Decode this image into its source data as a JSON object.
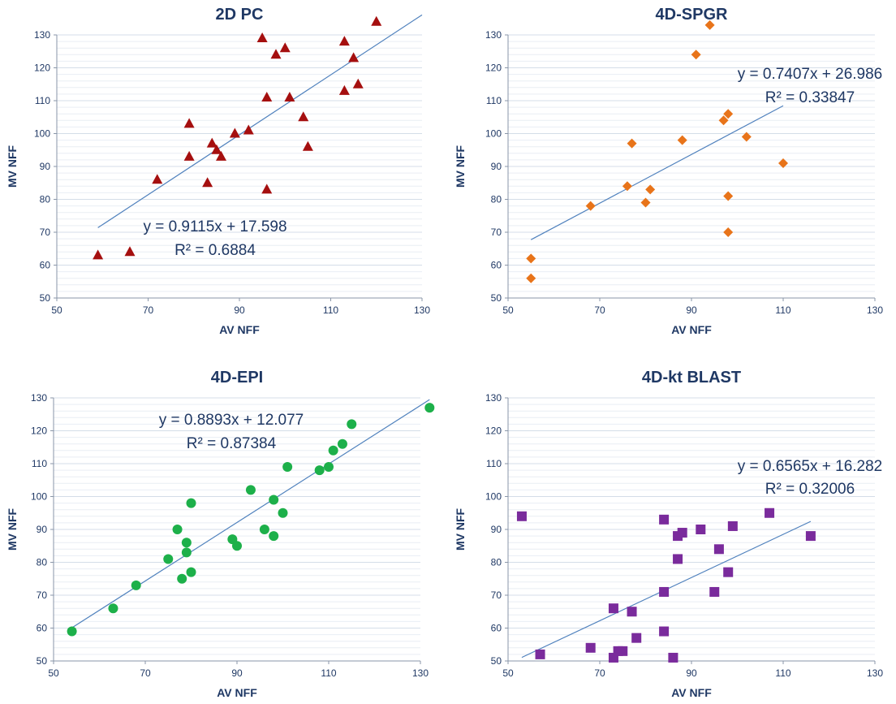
{
  "chart_data": [
    {
      "type": "scatter",
      "title": "2D PC",
      "xlabel": "AV NFF",
      "ylabel": "MV NFF",
      "xlim": [
        50,
        130
      ],
      "ylim": [
        50,
        130
      ],
      "xticks": [
        "50",
        "70",
        "90",
        "110",
        "130"
      ],
      "yticks": [
        "50",
        "60",
        "70",
        "80",
        "90",
        "100",
        "110",
        "120",
        "130"
      ],
      "marker": "triangle",
      "color": "#a50f0f",
      "grid": true,
      "equation": "y = 0.9115x + 17.598",
      "r2": "R² = 0.6884",
      "trendline": {
        "x0": 59,
        "x1": 130
      },
      "points": [
        {
          "x": 59,
          "y": 63
        },
        {
          "x": 66,
          "y": 64
        },
        {
          "x": 72,
          "y": 86
        },
        {
          "x": 79,
          "y": 103
        },
        {
          "x": 79,
          "y": 93
        },
        {
          "x": 83,
          "y": 85
        },
        {
          "x": 84,
          "y": 97
        },
        {
          "x": 85,
          "y": 95
        },
        {
          "x": 86,
          "y": 93
        },
        {
          "x": 89,
          "y": 100
        },
        {
          "x": 92,
          "y": 101
        },
        {
          "x": 95,
          "y": 129
        },
        {
          "x": 96,
          "y": 111
        },
        {
          "x": 96,
          "y": 83
        },
        {
          "x": 98,
          "y": 124
        },
        {
          "x": 100,
          "y": 126
        },
        {
          "x": 101,
          "y": 111
        },
        {
          "x": 104,
          "y": 105
        },
        {
          "x": 105,
          "y": 96
        },
        {
          "x": 113,
          "y": 128
        },
        {
          "x": 113,
          "y": 113
        },
        {
          "x": 115,
          "y": 123
        },
        {
          "x": 116,
          "y": 115
        },
        {
          "x": 120,
          "y": 134
        }
      ]
    },
    {
      "type": "scatter",
      "title": "4D-SPGR",
      "xlabel": "AV NFF",
      "ylabel": "MV NFF",
      "xlim": [
        50,
        130
      ],
      "ylim": [
        50,
        130
      ],
      "xticks": [
        "50",
        "70",
        "90",
        "110",
        "130"
      ],
      "yticks": [
        "50",
        "60",
        "70",
        "80",
        "90",
        "100",
        "110",
        "120",
        "130"
      ],
      "marker": "diamond",
      "color": "#e8741a",
      "grid": true,
      "equation": "y = 0.7407x + 26.986",
      "r2": "R² = 0.33847",
      "trendline": {
        "x0": 55,
        "x1": 110
      },
      "points": [
        {
          "x": 55,
          "y": 62
        },
        {
          "x": 55,
          "y": 56
        },
        {
          "x": 68,
          "y": 78
        },
        {
          "x": 76,
          "y": 84
        },
        {
          "x": 77,
          "y": 97
        },
        {
          "x": 80,
          "y": 79
        },
        {
          "x": 81,
          "y": 83
        },
        {
          "x": 88,
          "y": 98
        },
        {
          "x": 91,
          "y": 124
        },
        {
          "x": 94,
          "y": 133
        },
        {
          "x": 97,
          "y": 104
        },
        {
          "x": 98,
          "y": 106
        },
        {
          "x": 98,
          "y": 81
        },
        {
          "x": 98,
          "y": 70
        },
        {
          "x": 102,
          "y": 99
        },
        {
          "x": 110,
          "y": 91
        }
      ]
    },
    {
      "type": "scatter",
      "title": "4D-EPI",
      "xlabel": "AV NFF",
      "ylabel": "MV NFF",
      "xlim": [
        50,
        130
      ],
      "ylim": [
        50,
        130
      ],
      "xticks": [
        "50",
        "70",
        "90",
        "110",
        "130"
      ],
      "yticks": [
        "50",
        "60",
        "70",
        "80",
        "90",
        "100",
        "110",
        "120",
        "130"
      ],
      "marker": "circle",
      "color": "#1db04a",
      "grid": true,
      "equation": "y = 0.8893x + 12.077",
      "r2": "R² = 0.87384",
      "trendline": {
        "x0": 54,
        "x1": 132
      },
      "points": [
        {
          "x": 54,
          "y": 59
        },
        {
          "x": 63,
          "y": 66
        },
        {
          "x": 68,
          "y": 73
        },
        {
          "x": 75,
          "y": 81
        },
        {
          "x": 77,
          "y": 90
        },
        {
          "x": 78,
          "y": 75
        },
        {
          "x": 79,
          "y": 86
        },
        {
          "x": 79,
          "y": 83
        },
        {
          "x": 80,
          "y": 98
        },
        {
          "x": 80,
          "y": 77
        },
        {
          "x": 89,
          "y": 87
        },
        {
          "x": 90,
          "y": 85
        },
        {
          "x": 93,
          "y": 102
        },
        {
          "x": 96,
          "y": 90
        },
        {
          "x": 98,
          "y": 99
        },
        {
          "x": 98,
          "y": 88
        },
        {
          "x": 100,
          "y": 95
        },
        {
          "x": 101,
          "y": 109
        },
        {
          "x": 108,
          "y": 108
        },
        {
          "x": 110,
          "y": 109
        },
        {
          "x": 111,
          "y": 114
        },
        {
          "x": 113,
          "y": 116
        },
        {
          "x": 115,
          "y": 122
        },
        {
          "x": 132,
          "y": 127
        }
      ]
    },
    {
      "type": "scatter",
      "title": "4D-kt BLAST",
      "xlabel": "AV NFF",
      "ylabel": "MV NFF",
      "xlim": [
        50,
        130
      ],
      "ylim": [
        50,
        130
      ],
      "xticks": [
        "50",
        "70",
        "90",
        "110",
        "130"
      ],
      "yticks": [
        "50",
        "60",
        "70",
        "80",
        "90",
        "100",
        "110",
        "120",
        "130"
      ],
      "marker": "square",
      "color": "#7a2b9c",
      "grid": true,
      "equation": "y = 0.6565x + 16.282",
      "r2": "R² = 0.32006",
      "trendline": {
        "x0": 53,
        "x1": 116
      },
      "points": [
        {
          "x": 53,
          "y": 94
        },
        {
          "x": 57,
          "y": 52
        },
        {
          "x": 68,
          "y": 54
        },
        {
          "x": 73,
          "y": 66
        },
        {
          "x": 73,
          "y": 51
        },
        {
          "x": 74,
          "y": 53
        },
        {
          "x": 75,
          "y": 53
        },
        {
          "x": 77,
          "y": 65
        },
        {
          "x": 78,
          "y": 57
        },
        {
          "x": 84,
          "y": 93
        },
        {
          "x": 84,
          "y": 71
        },
        {
          "x": 84,
          "y": 59
        },
        {
          "x": 86,
          "y": 51
        },
        {
          "x": 87,
          "y": 88
        },
        {
          "x": 87,
          "y": 81
        },
        {
          "x": 88,
          "y": 89
        },
        {
          "x": 92,
          "y": 90
        },
        {
          "x": 95,
          "y": 71
        },
        {
          "x": 96,
          "y": 84
        },
        {
          "x": 98,
          "y": 77
        },
        {
          "x": 99,
          "y": 91
        },
        {
          "x": 107,
          "y": 95
        },
        {
          "x": 116,
          "y": 88
        }
      ]
    }
  ]
}
